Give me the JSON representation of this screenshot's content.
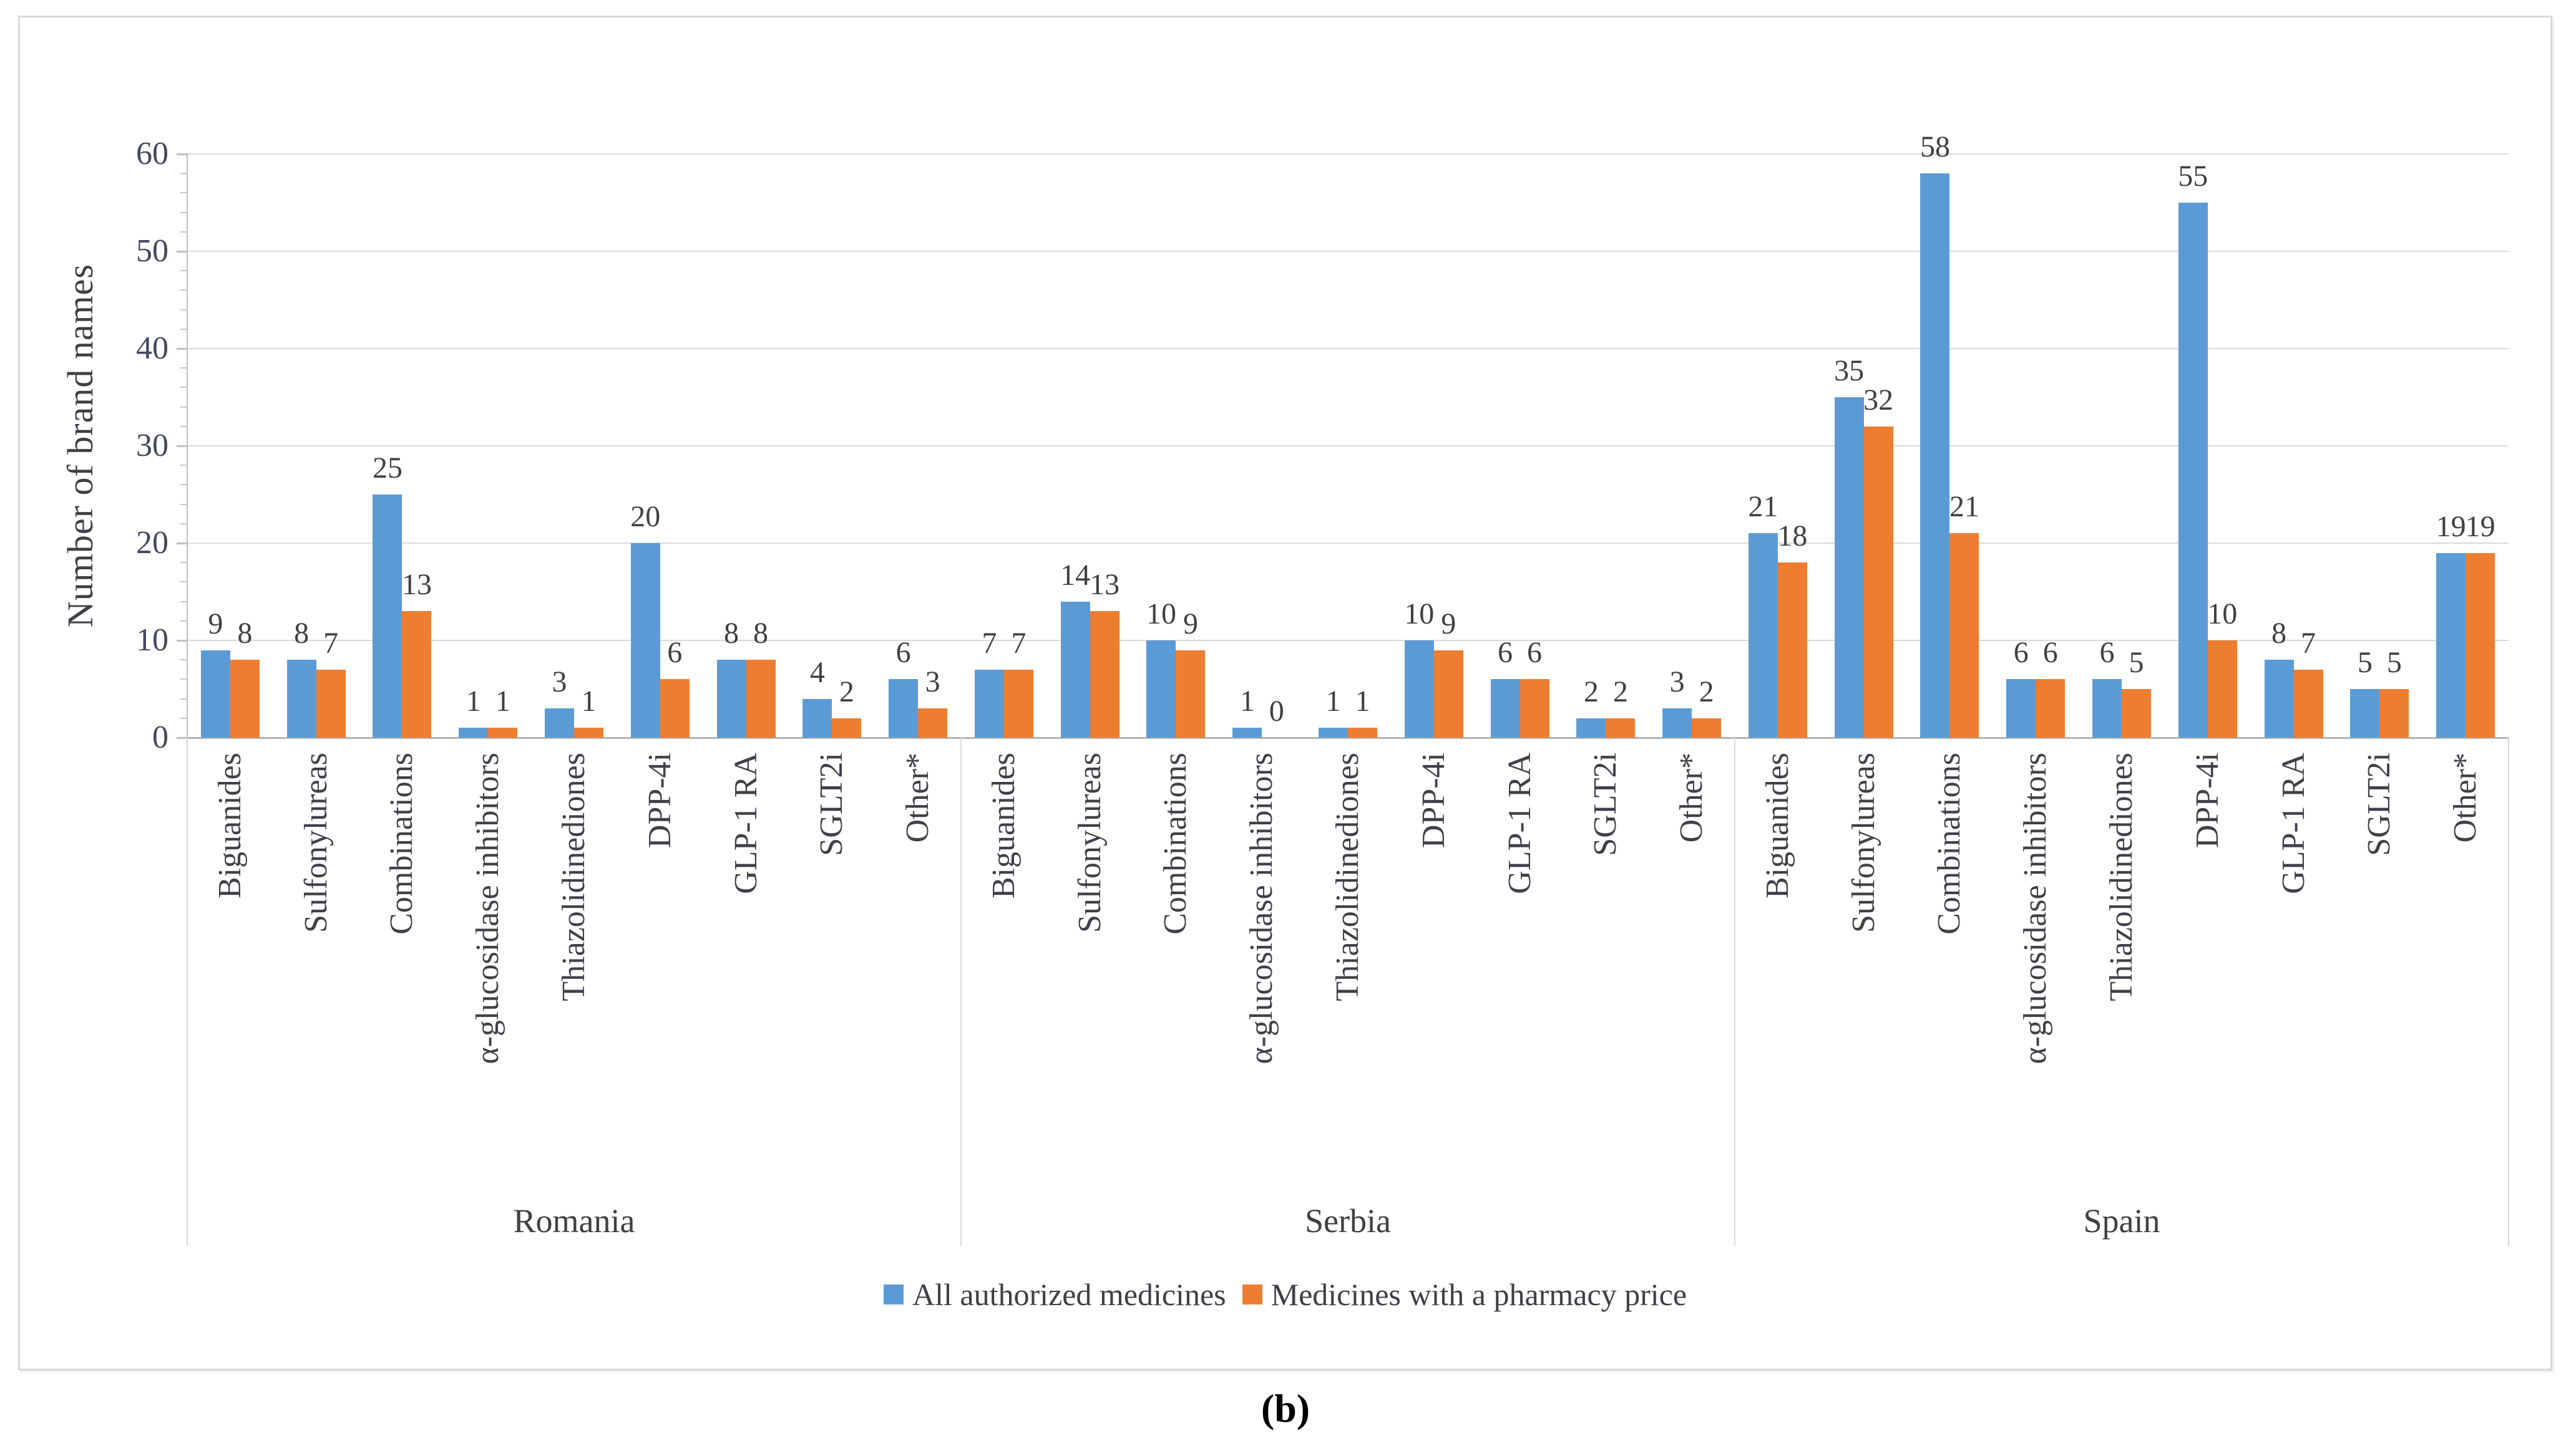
{
  "caption": {
    "label": "(b)"
  },
  "chart_data": {
    "type": "bar",
    "title": "",
    "xlabel": "",
    "ylabel": "Number of brand names",
    "ylim": [
      0,
      60
    ],
    "ytick_interval": 10,
    "yminor_tick_interval": 2,
    "grid": true,
    "legend_position": "bottom",
    "value_labels": true,
    "categories": [
      "Biguanides",
      "Sulfonylureas",
      "Combinations",
      "α-glucosidase inhibitors",
      "Thiazolidinediones",
      "DPP-4i",
      "GLP-1 RA",
      "SGLT2i",
      "Other*"
    ],
    "country_groups": [
      "Romania",
      "Serbia",
      "Spain"
    ],
    "series": [
      {
        "name": "All authorized medicines",
        "color": "#5b9bd5",
        "values": [
          [
            9,
            8,
            25,
            1,
            3,
            20,
            8,
            4,
            6
          ],
          [
            7,
            14,
            10,
            1,
            1,
            10,
            6,
            2,
            3
          ],
          [
            21,
            35,
            58,
            6,
            6,
            55,
            8,
            5,
            19
          ]
        ]
      },
      {
        "name": "Medicines with a pharmacy price",
        "color": "#ed7d31",
        "values": [
          [
            8,
            7,
            13,
            1,
            1,
            6,
            8,
            2,
            3
          ],
          [
            7,
            13,
            9,
            0,
            1,
            9,
            6,
            2,
            2
          ],
          [
            18,
            32,
            21,
            6,
            5,
            10,
            7,
            5,
            19
          ]
        ]
      }
    ],
    "colors": {
      "gridline": "#d9d9d9",
      "axis": "#bfbfbf",
      "text": "#404040"
    }
  }
}
